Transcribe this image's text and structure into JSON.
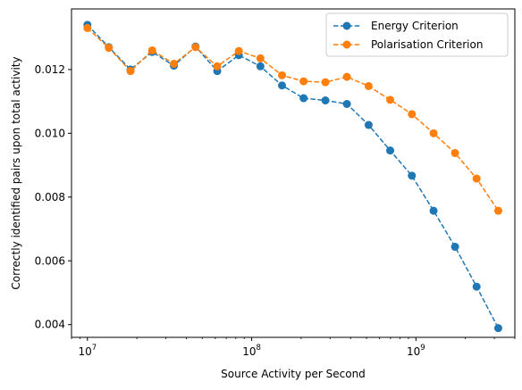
{
  "chart_data": {
    "type": "line",
    "title": "",
    "xlabel": "Source Activity per Second",
    "ylabel": "Correctly identified pairs upon total activity",
    "xscale": "log",
    "xlim": [
      8000000,
      4000000000
    ],
    "ylim": [
      0.0036,
      0.0139
    ],
    "x_ticks": [
      {
        "value": 10000000,
        "base": "10",
        "exp": "7"
      },
      {
        "value": 100000000,
        "base": "10",
        "exp": "8"
      },
      {
        "value": 1000000000,
        "base": "10",
        "exp": "9"
      }
    ],
    "y_ticks": [
      {
        "value": 0.004,
        "label": "0.004"
      },
      {
        "value": 0.006,
        "label": "0.006"
      },
      {
        "value": 0.008,
        "label": "0.008"
      },
      {
        "value": 0.01,
        "label": "0.010"
      },
      {
        "value": 0.012,
        "label": "0.012"
      }
    ],
    "grid": false,
    "legend_position": "top-right",
    "x": [
      10000000,
      13500000,
      18300000,
      24800000,
      33600000,
      45500000,
      61700000,
      83500000,
      113000000,
      153000000,
      207000000,
      281000000,
      380000000,
      515000000,
      697000000,
      944000000,
      1280000000,
      1730000000,
      2340000000,
      3170000000
    ],
    "series": [
      {
        "name": "Energy Criterion",
        "color": "#1f77b4",
        "line_style": "dashed",
        "marker": "circle",
        "values": [
          0.0134,
          0.0127,
          0.012,
          0.01255,
          0.01212,
          0.01272,
          0.01195,
          0.01245,
          0.0121,
          0.0115,
          0.0111,
          0.01103,
          0.01092,
          0.01026,
          0.00946,
          0.00867,
          0.00757,
          0.00644,
          0.00519,
          0.00389
        ]
      },
      {
        "name": "Polarisation Criterion",
        "color": "#ff7f0e",
        "line_style": "dashed",
        "marker": "circle",
        "values": [
          0.0133,
          0.01268,
          0.01195,
          0.0126,
          0.01218,
          0.0127,
          0.0121,
          0.01258,
          0.01235,
          0.01182,
          0.01163,
          0.0116,
          0.01177,
          0.01148,
          0.01105,
          0.0106,
          0.01,
          0.00938,
          0.00858,
          0.00757
        ]
      }
    ]
  }
}
